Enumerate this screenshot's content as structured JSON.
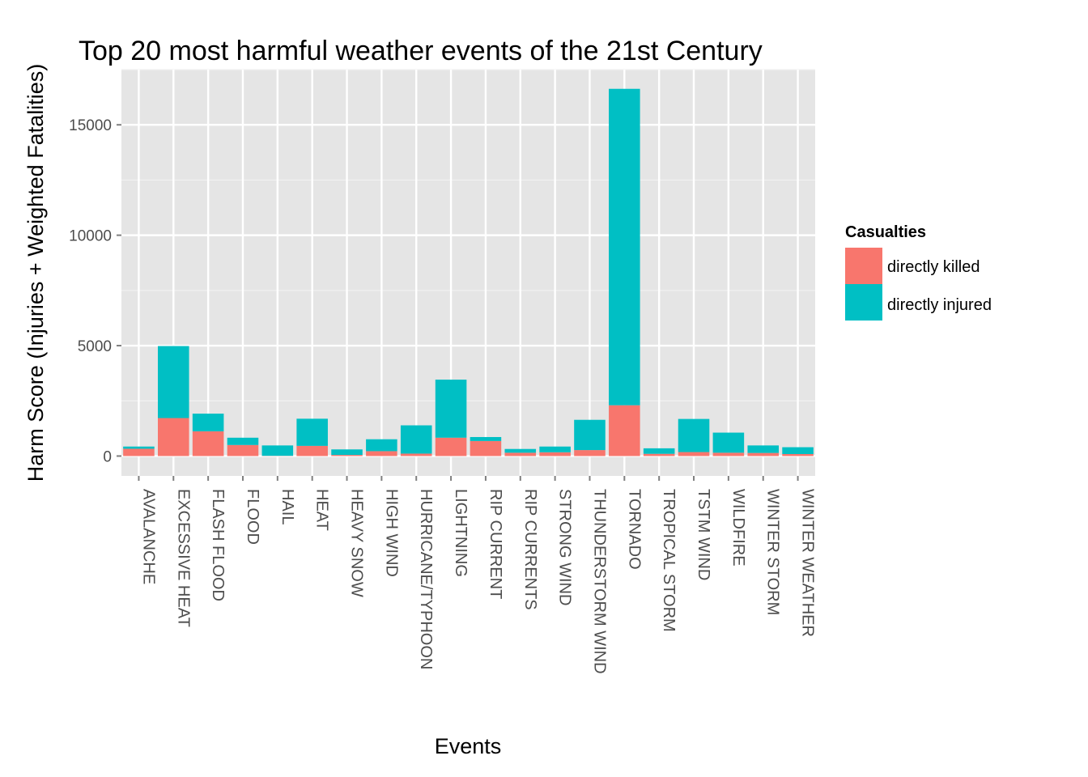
{
  "chart_data": {
    "type": "bar",
    "stacked": true,
    "title": "Top 20 most harmful weather events of the 21st Century",
    "xlabel": "Events",
    "ylabel": "Harm Score (Injuries + Weighted Fatalities)",
    "ylim": [
      -900,
      17500
    ],
    "yticks": [
      0,
      5000,
      10000,
      15000
    ],
    "grid": true,
    "legend": {
      "title": "Casualties",
      "placement": "right",
      "entries": [
        "directly killed",
        "directly injured"
      ]
    },
    "categories": [
      "AVALANCHE",
      "EXCESSIVE HEAT",
      "FLASH FLOOD",
      "FLOOD",
      "HAIL",
      "HEAT",
      "HEAVY SNOW",
      "HIGH WIND",
      "HURRICANE/TYPHOON",
      "LIGHTNING",
      "RIP CURRENT",
      "RIP CURRENTS",
      "STRONG WIND",
      "THUNDERSTORM WIND",
      "TORNADO",
      "TROPICAL STORM",
      "TSTM WIND",
      "WILDFIRE",
      "WINTER STORM",
      "WINTER WEATHER"
    ],
    "series": [
      {
        "name": "directly killed",
        "color": "#F8766D",
        "values": [
          330,
          1720,
          1120,
          500,
          10,
          460,
          50,
          220,
          110,
          830,
          680,
          150,
          170,
          270,
          2300,
          100,
          180,
          150,
          140,
          90
        ]
      },
      {
        "name": "directly injured",
        "color": "#00BFC4",
        "values": [
          100,
          3260,
          800,
          330,
          470,
          1230,
          250,
          540,
          1280,
          2630,
          180,
          170,
          260,
          1370,
          14330,
          250,
          1500,
          910,
          340,
          310
        ]
      }
    ]
  }
}
